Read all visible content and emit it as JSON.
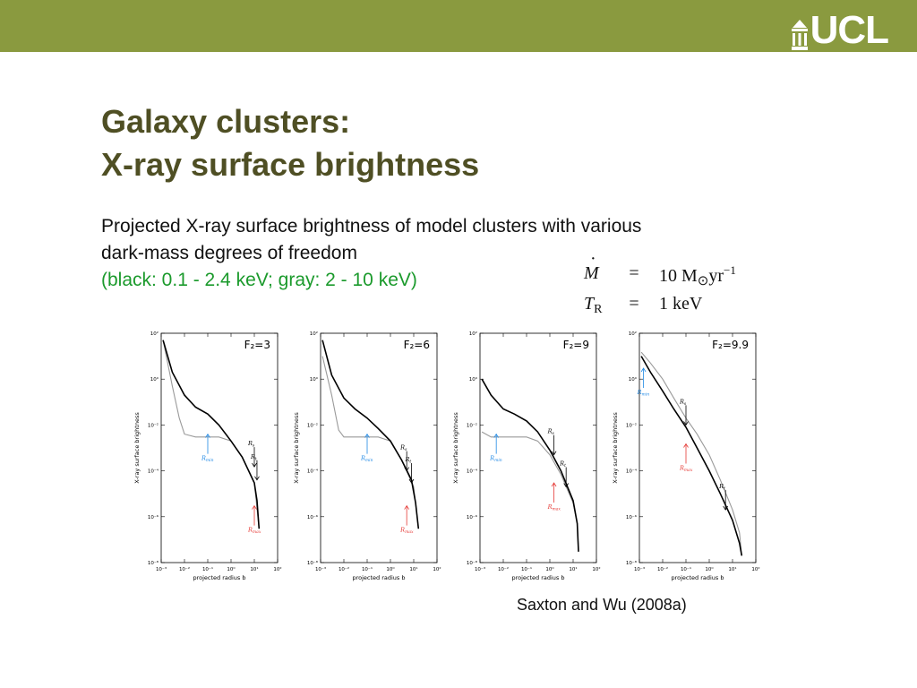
{
  "header": {
    "logo_text": "UCL",
    "bar_color": "#8a9a3f"
  },
  "title": {
    "line1": "Galaxy clusters:",
    "line2": "X-ray surface brightness"
  },
  "description": {
    "line1": "Projected X-ray surface brightness of model clusters with various",
    "line2": "dark-mass degrees of freedom",
    "line3": "(black: 0.1 - 2.4 keV; gray: 2 - 10 keV)"
  },
  "parameters": [
    {
      "symbol": "M",
      "eq": "=",
      "value": "10 M",
      "value_sub": "⊙",
      "value_unit": "yr",
      "value_sup": "−1"
    },
    {
      "symbol": "T",
      "symbol_sub": "R",
      "eq": "=",
      "value": "1 keV"
    }
  ],
  "citation": "Saxton and Wu (2008a)",
  "colors": {
    "title": "#4f4f24",
    "green_text": "#1b9a2c",
    "series_black": "#000000",
    "series_gray": "#9a9a9a",
    "arrow_blue": "#1e88e5",
    "arrow_red": "#e53935"
  },
  "chart_data": [
    {
      "type": "line",
      "label": "F₂=3",
      "xlabel": "projected radius b",
      "ylabel": "X-ray surface brightness",
      "x_scale": "log",
      "y_scale": "log",
      "xlim": [
        0.001,
        100
      ],
      "ylim": [
        1e-08,
        100
      ],
      "x_ticks": [
        "10⁻³",
        "10⁻²",
        "10⁻¹",
        "10⁰",
        "10¹",
        "10²"
      ],
      "y_ticks": [
        "10²",
        "10⁰",
        "10⁻²",
        "10⁻⁴",
        "10⁻⁶",
        "10⁻⁸"
      ],
      "series": [
        {
          "color": "black",
          "x": [
            0.0012,
            0.003,
            0.01,
            0.03,
            0.1,
            0.3,
            1,
            3,
            10,
            13,
            16
          ],
          "y": [
            50,
            2,
            0.2,
            0.06,
            0.03,
            0.01,
            0.002,
            0.0004,
            3e-05,
            5e-06,
            3e-07
          ]
        },
        {
          "color": "gray",
          "x": [
            0.0012,
            0.003,
            0.006,
            0.01,
            0.03,
            0.1,
            0.3,
            1,
            3,
            10,
            16
          ],
          "y": [
            50,
            0.5,
            0.02,
            0.004,
            0.003,
            0.003,
            0.003,
            0.002,
            0.0004,
            3e-05,
            3e-07
          ]
        }
      ],
      "annotations": [
        {
          "text": "R",
          "sub": "min",
          "color": "blue",
          "x": 0.1,
          "y": 0.004,
          "dir": "up"
        },
        {
          "text": "R",
          "sub": "s",
          "color": "black",
          "x": 10,
          "y": 0.00015,
          "dir": "down"
        },
        {
          "text": "R",
          "sub": "t",
          "color": "black",
          "x": 13,
          "y": 4e-05,
          "dir": "down"
        },
        {
          "text": "R",
          "sub": "max",
          "color": "red",
          "x": 10,
          "y": 3e-06,
          "dir": "up"
        }
      ]
    },
    {
      "type": "line",
      "label": "F₂=6",
      "xlabel": "projected radius b",
      "ylabel": "X-ray surface brightness",
      "x_scale": "log",
      "y_scale": "log",
      "xlim": [
        0.001,
        100
      ],
      "ylim": [
        1e-08,
        100
      ],
      "x_ticks": [
        "10⁻³",
        "10⁻²",
        "10⁻¹",
        "10⁰",
        "10¹",
        "10²"
      ],
      "y_ticks": [
        "10²",
        "10⁰",
        "10⁻²",
        "10⁻⁴",
        "10⁻⁶",
        "10⁻⁸"
      ],
      "series": [
        {
          "color": "black",
          "x": [
            0.0012,
            0.003,
            0.01,
            0.03,
            0.1,
            0.3,
            1,
            3,
            8,
            12,
            16
          ],
          "y": [
            50,
            1.5,
            0.15,
            0.05,
            0.02,
            0.007,
            0.002,
            0.0003,
            4e-05,
            4e-06,
            3e-07
          ]
        },
        {
          "color": "gray",
          "x": [
            0.0012,
            0.003,
            0.006,
            0.01,
            0.03,
            0.1,
            0.3,
            1,
            3,
            10,
            16
          ],
          "y": [
            10,
            0.2,
            0.006,
            0.003,
            0.003,
            0.003,
            0.003,
            0.002,
            0.0003,
            2e-05,
            3e-07
          ]
        }
      ],
      "annotations": [
        {
          "text": "R",
          "sub": "min",
          "color": "blue",
          "x": 0.1,
          "y": 0.004,
          "dir": "up"
        },
        {
          "text": "R",
          "sub": "s",
          "color": "black",
          "x": 5,
          "y": 0.0001,
          "dir": "down"
        },
        {
          "text": "R",
          "sub": "t",
          "color": "black",
          "x": 8,
          "y": 3e-05,
          "dir": "down"
        },
        {
          "text": "R",
          "sub": "max",
          "color": "red",
          "x": 5,
          "y": 3e-06,
          "dir": "up"
        }
      ]
    },
    {
      "type": "line",
      "label": "F₂=9",
      "xlabel": "projected radius b",
      "ylabel": "X-ray surface brightness",
      "x_scale": "log",
      "y_scale": "log",
      "xlim": [
        0.001,
        100
      ],
      "ylim": [
        1e-08,
        100
      ],
      "x_ticks": [
        "10⁻³",
        "10⁻²",
        "10⁻¹",
        "10⁰",
        "10¹",
        "10²"
      ],
      "y_ticks": [
        "10²",
        "10⁰",
        "10⁻²",
        "10⁻⁴",
        "10⁻⁶",
        "10⁻⁸"
      ],
      "series": [
        {
          "color": "black",
          "x": [
            0.0012,
            0.003,
            0.01,
            0.03,
            0.1,
            0.3,
            1,
            3,
            10,
            15,
            17
          ],
          "y": [
            1,
            0.2,
            0.05,
            0.03,
            0.015,
            0.005,
            0.0008,
            0.0001,
            5e-06,
            5e-07,
            3e-08
          ]
        },
        {
          "color": "gray",
          "x": [
            0.0012,
            0.003,
            0.01,
            0.03,
            0.1,
            0.3,
            1,
            3,
            10,
            15,
            17
          ],
          "y": [
            0.005,
            0.003,
            0.003,
            0.003,
            0.003,
            0.002,
            0.0005,
            7e-05,
            4e-06,
            5e-07,
            3e-08
          ]
        }
      ],
      "annotations": [
        {
          "text": "R",
          "sub": "min",
          "color": "blue",
          "x": 0.005,
          "y": 0.004,
          "dir": "up"
        },
        {
          "text": "R",
          "sub": "s",
          "color": "black",
          "x": 1.5,
          "y": 0.0005,
          "dir": "down"
        },
        {
          "text": "R",
          "sub": "max",
          "color": "red",
          "x": 1.5,
          "y": 3e-05,
          "dir": "up"
        },
        {
          "text": "R",
          "sub": "t",
          "color": "black",
          "x": 5,
          "y": 2e-05,
          "dir": "down"
        }
      ]
    },
    {
      "type": "line",
      "label": "F₂=9.9",
      "xlabel": "projected radius b",
      "ylabel": "X-ray surface brightness",
      "x_scale": "log",
      "y_scale": "log",
      "xlim": [
        0.001,
        100
      ],
      "ylim": [
        1e-08,
        100
      ],
      "x_ticks": [
        "10⁻³",
        "10⁻²",
        "10⁻¹",
        "10⁰",
        "10¹",
        "10²"
      ],
      "y_ticks": [
        "10²",
        "10⁰",
        "10⁻²",
        "10⁻⁴",
        "10⁻⁶",
        "10⁻⁸"
      ],
      "series": [
        {
          "color": "black",
          "x": [
            0.0012,
            0.003,
            0.01,
            0.03,
            0.1,
            0.3,
            1,
            3,
            10,
            20,
            25
          ],
          "y": [
            10,
            2,
            0.3,
            0.05,
            0.008,
            0.001,
            0.0001,
            1e-05,
            7e-07,
            7e-08,
            2e-08
          ]
        },
        {
          "color": "gray",
          "x": [
            0.0012,
            0.003,
            0.01,
            0.03,
            0.1,
            0.3,
            1,
            3,
            10,
            20,
            25
          ],
          "y": [
            15,
            5,
            1,
            0.15,
            0.02,
            0.004,
            0.0005,
            4e-05,
            2e-06,
            2e-07,
            2e-08
          ]
        }
      ],
      "annotations": [
        {
          "text": "R",
          "sub": "min",
          "color": "blue",
          "x": 0.0015,
          "y": 3,
          "dir": "up"
        },
        {
          "text": "R",
          "sub": "s",
          "color": "black",
          "x": 0.1,
          "y": 0.01,
          "dir": "down"
        },
        {
          "text": "R",
          "sub": "max",
          "color": "red",
          "x": 0.1,
          "y": 0.0015,
          "dir": "up"
        },
        {
          "text": "R",
          "sub": "t",
          "color": "black",
          "x": 5,
          "y": 2e-06,
          "dir": "down"
        }
      ]
    }
  ]
}
